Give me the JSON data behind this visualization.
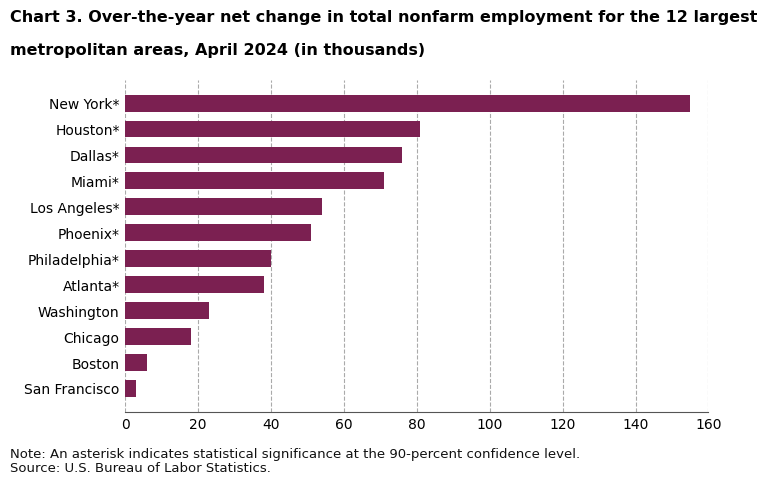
{
  "title_line1": "Chart 3. Over-the-year net change in total nonfarm employment for the 12 largest",
  "title_line2": "metropolitan areas, April 2024 (in thousands)",
  "categories": [
    "San Francisco",
    "Boston",
    "Chicago",
    "Washington",
    "Atlanta*",
    "Philadelphia*",
    "Phoenix*",
    "Los Angeles*",
    "Miami*",
    "Dallas*",
    "Houston*",
    "New York*"
  ],
  "values": [
    3,
    6,
    18,
    23,
    38,
    40,
    51,
    54,
    71,
    76,
    81,
    155
  ],
  "bar_color": "#7b2051",
  "xlim": [
    0,
    160
  ],
  "xticks": [
    0,
    20,
    40,
    60,
    80,
    100,
    120,
    140,
    160
  ],
  "note": "Note: An asterisk indicates statistical significance at the 90-percent confidence level.",
  "source": "Source: U.S. Bureau of Labor Statistics.",
  "grid_color": "#aaaaaa",
  "background_color": "#ffffff",
  "title_fontsize": 11.5,
  "tick_fontsize": 10,
  "note_fontsize": 9.5
}
